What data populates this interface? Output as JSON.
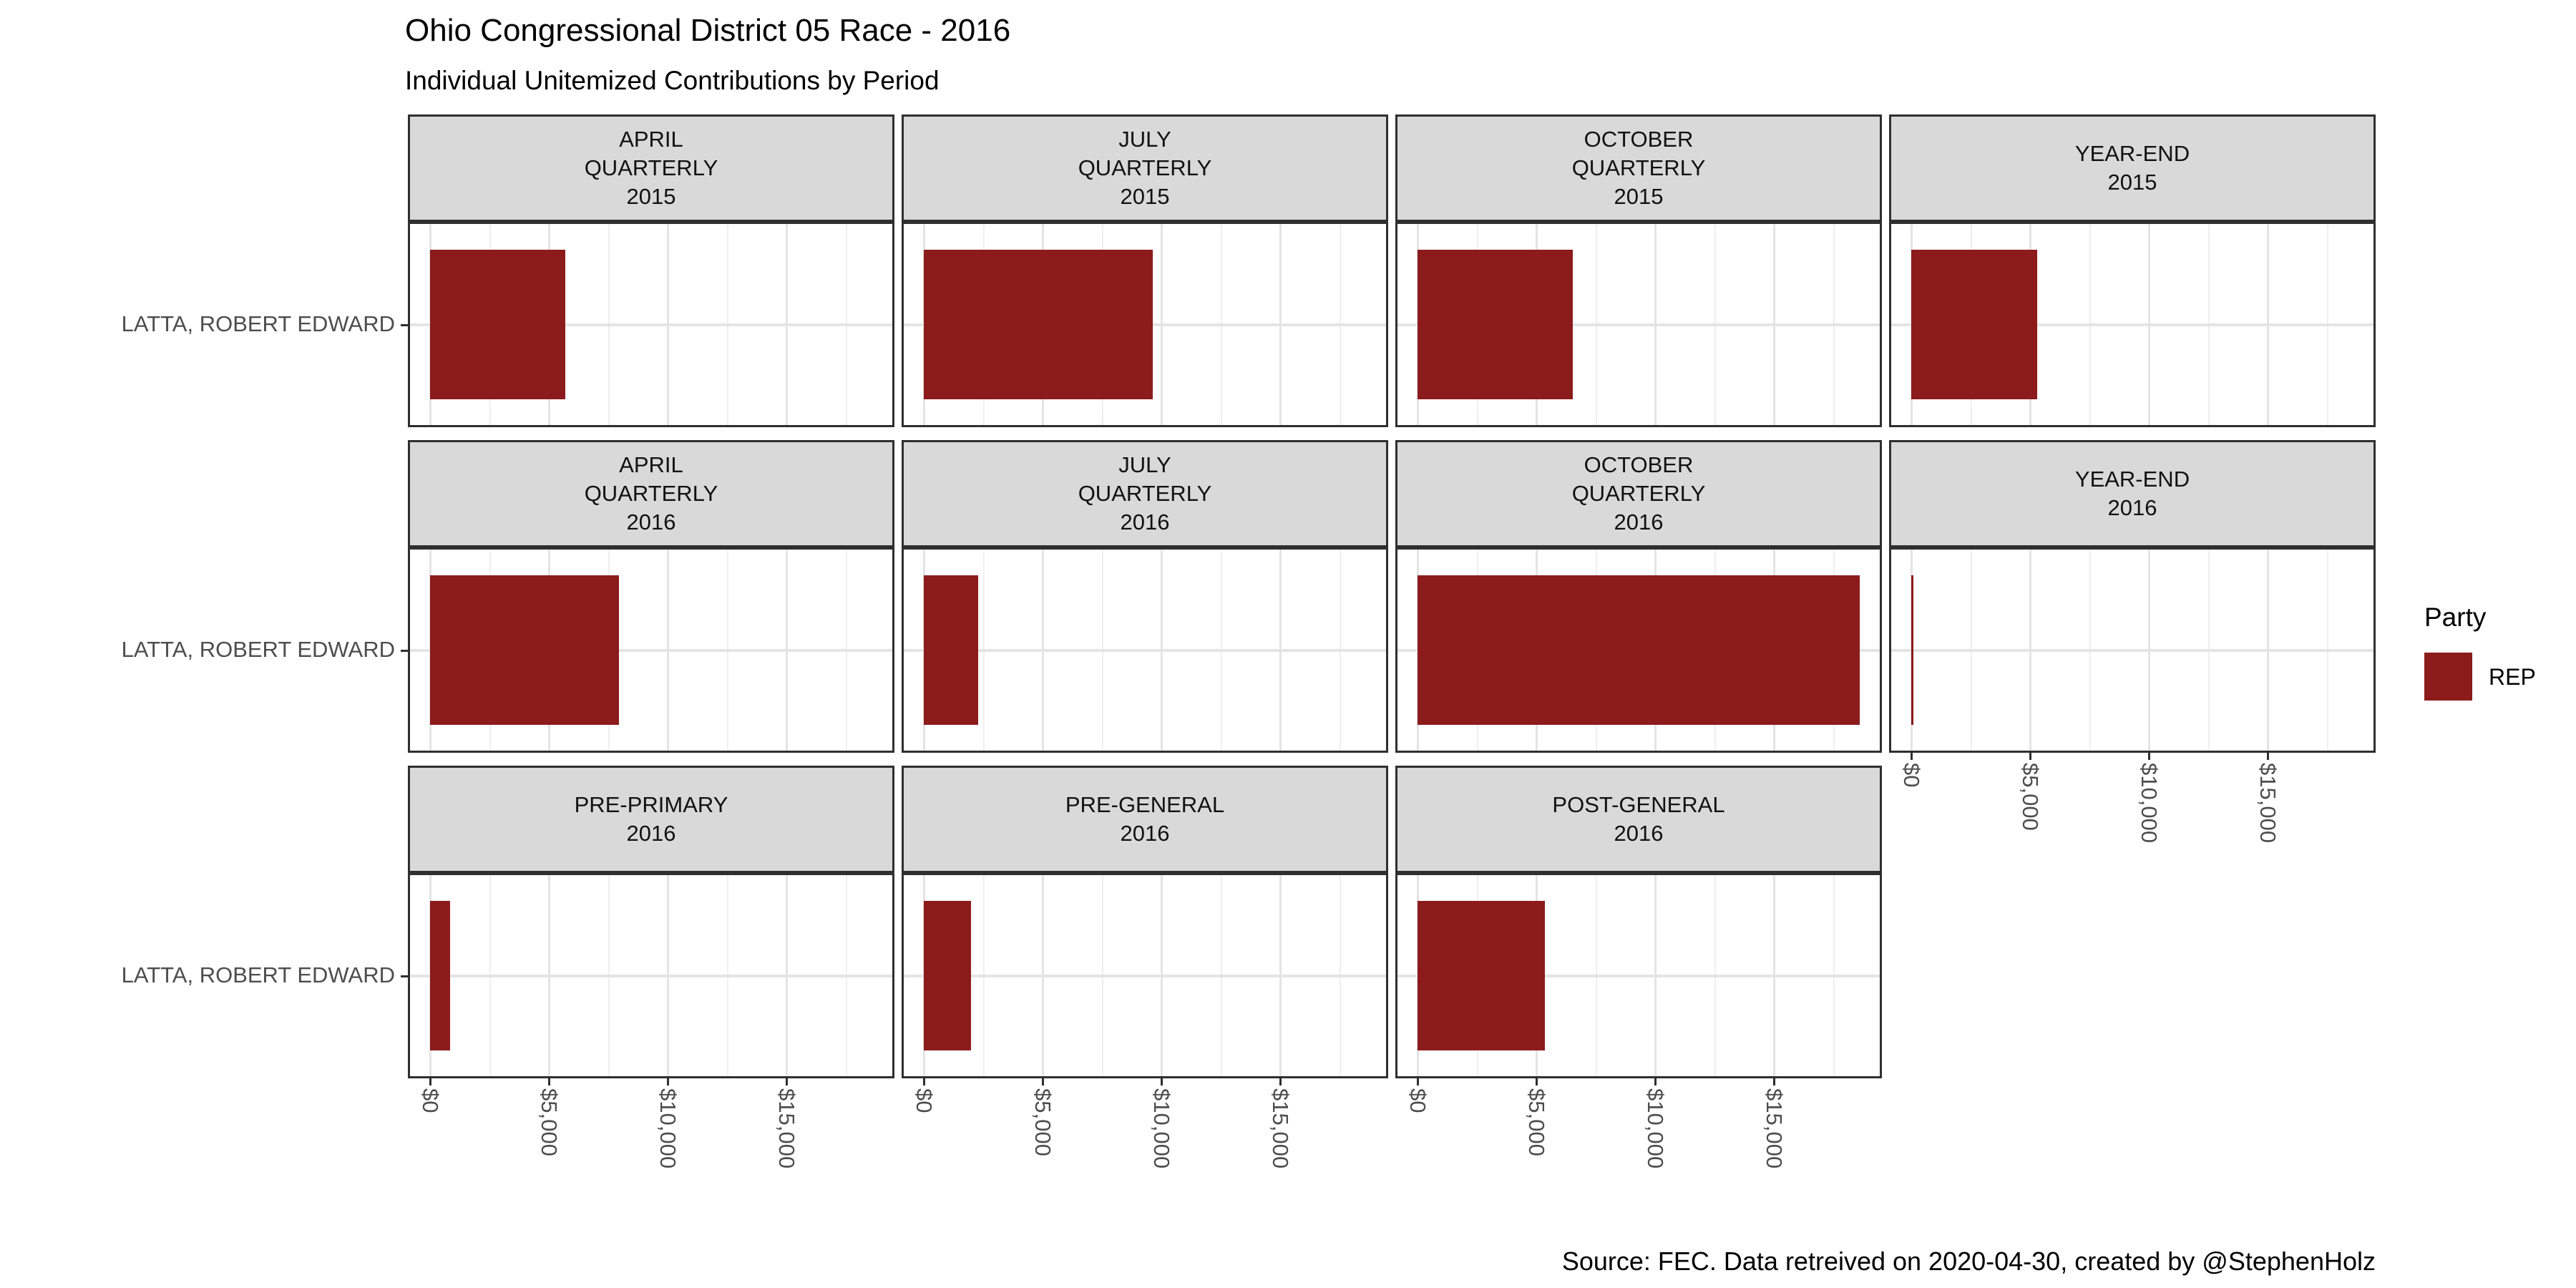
{
  "chart_data": {
    "type": "bar",
    "orientation": "horizontal",
    "title": "Ohio Congressional District 05 Race - 2016",
    "subtitle": "Individual Unitemized Contributions by Period",
    "caption": "Source: FEC. Data retreived on 2020-04-30, created by @StephenHolz",
    "candidate": "LATTA, ROBERT EDWARD",
    "party_legend": {
      "title": "Party",
      "entries": [
        {
          "label": "REP",
          "color": "#8C1B1B"
        }
      ]
    },
    "x_axis": {
      "tick_labels": [
        "$0",
        "$5,000",
        "$10,000",
        "$15,000"
      ],
      "tick_values": [
        0,
        5000,
        10000,
        15000
      ],
      "minor_tick_values": [
        2500,
        7500,
        12500,
        17500
      ],
      "axis_max": 19550,
      "grid": true
    },
    "facets": [
      {
        "label_lines": [
          "APRIL",
          "QUARTERLY",
          "2015"
        ],
        "value_usd": 5700,
        "row": 0,
        "col": 0,
        "x_axis_shown": false
      },
      {
        "label_lines": [
          "JULY",
          "QUARTERLY",
          "2015"
        ],
        "value_usd": 9650,
        "row": 0,
        "col": 1,
        "x_axis_shown": false
      },
      {
        "label_lines": [
          "OCTOBER",
          "QUARTERLY",
          "2015"
        ],
        "value_usd": 6550,
        "row": 0,
        "col": 2,
        "x_axis_shown": false
      },
      {
        "label_lines": [
          "YEAR-END",
          "2015"
        ],
        "value_usd": 5300,
        "row": 0,
        "col": 3,
        "x_axis_shown": false
      },
      {
        "label_lines": [
          "APRIL",
          "QUARTERLY",
          "2016"
        ],
        "value_usd": 7950,
        "row": 1,
        "col": 0,
        "x_axis_shown": false
      },
      {
        "label_lines": [
          "JULY",
          "QUARTERLY",
          "2016"
        ],
        "value_usd": 2300,
        "row": 1,
        "col": 1,
        "x_axis_shown": false
      },
      {
        "label_lines": [
          "OCTOBER",
          "QUARTERLY",
          "2016"
        ],
        "value_usd": 18600,
        "row": 1,
        "col": 2,
        "x_axis_shown": false
      },
      {
        "label_lines": [
          "YEAR-END",
          "2016"
        ],
        "value_usd": 100,
        "row": 1,
        "col": 3,
        "x_axis_shown": true
      },
      {
        "label_lines": [
          "PRE-PRIMARY",
          "2016"
        ],
        "value_usd": 850,
        "row": 2,
        "col": 0,
        "x_axis_shown": true
      },
      {
        "label_lines": [
          "PRE-GENERAL",
          "2016"
        ],
        "value_usd": 2000,
        "row": 2,
        "col": 1,
        "x_axis_shown": true
      },
      {
        "label_lines": [
          "POST-GENERAL",
          "2016"
        ],
        "value_usd": 5350,
        "row": 2,
        "col": 2,
        "x_axis_shown": true
      }
    ]
  }
}
